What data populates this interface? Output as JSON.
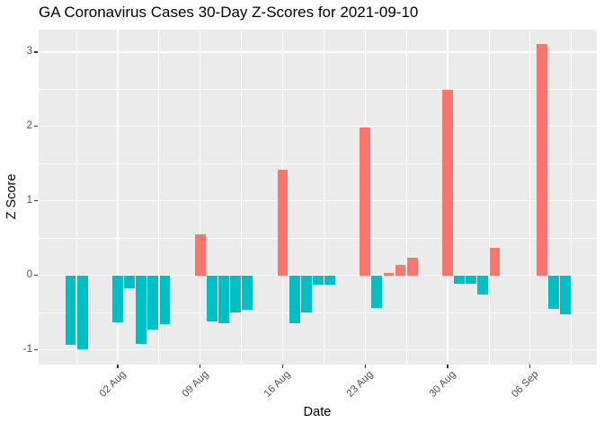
{
  "chart_data": {
    "type": "bar",
    "title": "GA Coronavirus Cases 30-Day Z-Scores for 2021-09-10",
    "xlabel": "Date",
    "ylabel": "Z Score",
    "legend": false,
    "grid": true,
    "baseline_date": "2021-07-29",
    "x_domain_days": [
      -2.71,
      44.66
    ],
    "ylim": [
      -1.2,
      3.3
    ],
    "y_major_ticks": [
      -1,
      0,
      1,
      2,
      3
    ],
    "y_minor_ticks": [
      -0.5,
      0.5,
      1.5,
      2.5
    ],
    "x_ticks": [
      {
        "date": "2021-08-02",
        "label": "02 Aug"
      },
      {
        "date": "2021-08-09",
        "label": "09 Aug"
      },
      {
        "date": "2021-08-16",
        "label": "16 Aug"
      },
      {
        "date": "2021-08-23",
        "label": "23 Aug"
      },
      {
        "date": "2021-08-30",
        "label": "30 Aug"
      },
      {
        "date": "2021-09-06",
        "label": "06 Sep"
      }
    ],
    "series": [
      {
        "date": "2021-07-29",
        "z": -0.94
      },
      {
        "date": "2021-07-30",
        "z": -1.0
      },
      {
        "date": "2021-08-02",
        "z": -0.63
      },
      {
        "date": "2021-08-03",
        "z": -0.18
      },
      {
        "date": "2021-08-04",
        "z": -0.92
      },
      {
        "date": "2021-08-05",
        "z": -0.73
      },
      {
        "date": "2021-08-06",
        "z": -0.66
      },
      {
        "date": "2021-08-09",
        "z": 0.55
      },
      {
        "date": "2021-08-10",
        "z": -0.62
      },
      {
        "date": "2021-08-11",
        "z": -0.64
      },
      {
        "date": "2021-08-12",
        "z": -0.5
      },
      {
        "date": "2021-08-13",
        "z": -0.46
      },
      {
        "date": "2021-08-16",
        "z": 1.42
      },
      {
        "date": "2021-08-17",
        "z": -0.65
      },
      {
        "date": "2021-08-18",
        "z": -0.5
      },
      {
        "date": "2021-08-19",
        "z": -0.13
      },
      {
        "date": "2021-08-20",
        "z": -0.13
      },
      {
        "date": "2021-08-23",
        "z": 1.99
      },
      {
        "date": "2021-08-24",
        "z": -0.44
      },
      {
        "date": "2021-08-25",
        "z": 0.03
      },
      {
        "date": "2021-08-26",
        "z": 0.14
      },
      {
        "date": "2021-08-27",
        "z": 0.23
      },
      {
        "date": "2021-08-30",
        "z": 2.49
      },
      {
        "date": "2021-08-31",
        "z": -0.12
      },
      {
        "date": "2021-09-01",
        "z": -0.12
      },
      {
        "date": "2021-09-02",
        "z": -0.26
      },
      {
        "date": "2021-09-03",
        "z": 0.37
      },
      {
        "date": "2021-09-07",
        "z": 3.11
      },
      {
        "date": "2021-09-08",
        "z": -0.45
      },
      {
        "date": "2021-09-09",
        "z": -0.53
      }
    ],
    "colors": {
      "positive": "#F8766D",
      "negative": "#00BFC4",
      "panel_background": "#EBEBEB",
      "gridline": "#FFFFFF",
      "axis_text": "#4D4D4D",
      "tick_mark": "#333333",
      "text": "#000000"
    }
  }
}
